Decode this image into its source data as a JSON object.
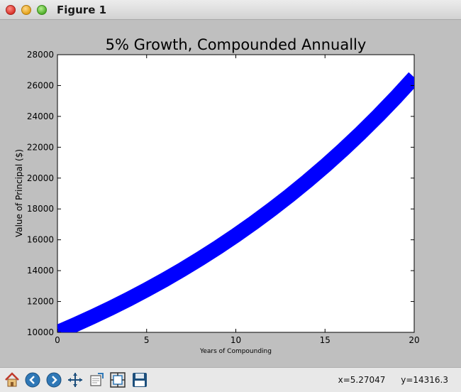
{
  "window": {
    "title": "Figure 1"
  },
  "status": {
    "x_readout": "x=5.27047",
    "y_readout": "y=14316.3"
  },
  "toolbar": {
    "buttons": [
      {
        "name": "home-icon"
      },
      {
        "name": "back-arrow-icon"
      },
      {
        "name": "forward-arrow-icon"
      },
      {
        "name": "pan-icon"
      },
      {
        "name": "zoom-icon"
      },
      {
        "name": "subplots-icon"
      },
      {
        "name": "save-icon"
      }
    ]
  },
  "colors": {
    "line": "#0000ff",
    "figure_bg": "#bfbfbf",
    "axes_bg": "#ffffff"
  },
  "chart_data": {
    "type": "line",
    "title": "5% Growth, Compounded Annually",
    "xlabel": "Years of Compounding",
    "ylabel": "Value of Principal ($)",
    "xlim": [
      0,
      20
    ],
    "ylim": [
      10000,
      28000
    ],
    "xticks": [
      "0",
      "5",
      "10",
      "15",
      "20"
    ],
    "yticks": [
      "10000",
      "12000",
      "14000",
      "16000",
      "18000",
      "20000",
      "22000",
      "24000",
      "26000",
      "28000"
    ],
    "grid": false,
    "line_width_note": "very thick line",
    "series": [
      {
        "x": [
          0,
          1,
          2,
          3,
          4,
          5,
          6,
          7,
          8,
          9,
          10,
          11,
          12,
          13,
          14,
          15,
          16,
          17,
          18,
          19,
          20
        ],
        "values": [
          10000,
          10500,
          11025,
          11576,
          12155,
          12763,
          13401,
          14071,
          14775,
          15513,
          16289,
          17103,
          17959,
          18856,
          19799,
          20789,
          21829,
          22920,
          24066,
          25270,
          26533
        ]
      }
    ]
  }
}
